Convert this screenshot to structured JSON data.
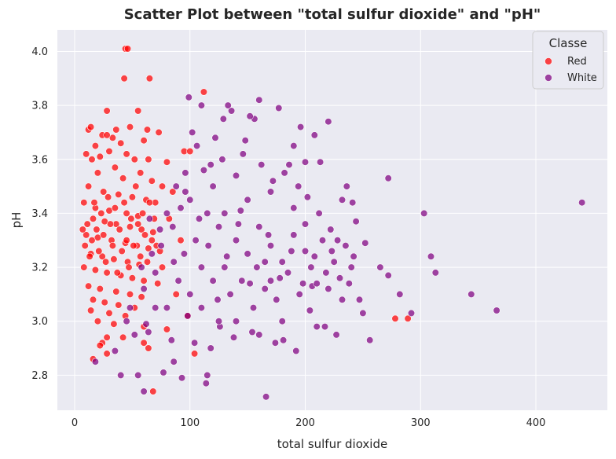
{
  "chart_data": {
    "type": "scatter",
    "title": "Scatter Plot between \"total sulfur dioxide\" and \"pH\"",
    "xlabel": "total sulfur dioxide",
    "ylabel": "pH",
    "xlim": [
      -15,
      462
    ],
    "ylim": [
      2.67,
      4.08
    ],
    "xticks": [
      0,
      100,
      200,
      300,
      400
    ],
    "yticks": [
      2.8,
      3.0,
      3.2,
      3.4,
      3.6,
      3.8,
      4.0
    ],
    "grid": true,
    "legend": {
      "title": "Classe",
      "placement": "top-right"
    },
    "series": [
      {
        "name": "Red",
        "color": "#ff0000",
        "points": [
          [
            44,
            4.01
          ],
          [
            46,
            4.01
          ],
          [
            43,
            3.9
          ],
          [
            65,
            3.9
          ],
          [
            55,
            3.78
          ],
          [
            28,
            3.78
          ],
          [
            12,
            3.71
          ],
          [
            14,
            3.72
          ],
          [
            36,
            3.71
          ],
          [
            48,
            3.72
          ],
          [
            63,
            3.71
          ],
          [
            73,
            3.7
          ],
          [
            33,
            3.68
          ],
          [
            24,
            3.69
          ],
          [
            28,
            3.69
          ],
          [
            40,
            3.66
          ],
          [
            60,
            3.67
          ],
          [
            18,
            3.65
          ],
          [
            30,
            3.63
          ],
          [
            45,
            3.62
          ],
          [
            10,
            3.62
          ],
          [
            15,
            3.6
          ],
          [
            22,
            3.61
          ],
          [
            52,
            3.6
          ],
          [
            64,
            3.6
          ],
          [
            95,
            3.63
          ],
          [
            80,
            3.59
          ],
          [
            20,
            3.55
          ],
          [
            35,
            3.57
          ],
          [
            42,
            3.53
          ],
          [
            57,
            3.55
          ],
          [
            67,
            3.52
          ],
          [
            76,
            3.5
          ],
          [
            12,
            3.5
          ],
          [
            25,
            3.48
          ],
          [
            38,
            3.47
          ],
          [
            50,
            3.46
          ],
          [
            62,
            3.45
          ],
          [
            70,
            3.44
          ],
          [
            8,
            3.44
          ],
          [
            18,
            3.42
          ],
          [
            30,
            3.41
          ],
          [
            45,
            3.4
          ],
          [
            55,
            3.39
          ],
          [
            16,
            3.38
          ],
          [
            26,
            3.37
          ],
          [
            36,
            3.36
          ],
          [
            48,
            3.35
          ],
          [
            58,
            3.34
          ],
          [
            68,
            3.33
          ],
          [
            10,
            3.32
          ],
          [
            20,
            3.31
          ],
          [
            32,
            3.3
          ],
          [
            44,
            3.29
          ],
          [
            54,
            3.28
          ],
          [
            64,
            3.27
          ],
          [
            74,
            3.26
          ],
          [
            14,
            3.25
          ],
          [
            24,
            3.24
          ],
          [
            34,
            3.23
          ],
          [
            46,
            3.22
          ],
          [
            56,
            3.21
          ],
          [
            8,
            3.2
          ],
          [
            18,
            3.19
          ],
          [
            28,
            3.18
          ],
          [
            40,
            3.17
          ],
          [
            50,
            3.16
          ],
          [
            60,
            3.15
          ],
          [
            72,
            3.14
          ],
          [
            12,
            3.13
          ],
          [
            22,
            3.12
          ],
          [
            36,
            3.11
          ],
          [
            48,
            3.1
          ],
          [
            58,
            3.09
          ],
          [
            16,
            3.08
          ],
          [
            26,
            3.07
          ],
          [
            38,
            3.06
          ],
          [
            52,
            3.05
          ],
          [
            14,
            3.04
          ],
          [
            30,
            3.03
          ],
          [
            44,
            3.02
          ],
          [
            20,
            3.0
          ],
          [
            34,
            2.99
          ],
          [
            60,
            2.98
          ],
          [
            28,
            2.94
          ],
          [
            42,
            2.94
          ],
          [
            24,
            2.92
          ],
          [
            22,
            2.91
          ],
          [
            60,
            2.92
          ],
          [
            64,
            2.9
          ],
          [
            16,
            2.86
          ],
          [
            28,
            2.88
          ],
          [
            68,
            2.74
          ],
          [
            104,
            2.88
          ],
          [
            278,
            3.01
          ],
          [
            289,
            3.01
          ],
          [
            112,
            3.85
          ],
          [
            100,
            3.63
          ],
          [
            85,
            3.48
          ],
          [
            92,
            3.3
          ],
          [
            88,
            3.1
          ],
          [
            98,
            3.02
          ],
          [
            80,
            2.97
          ],
          [
            76,
            3.2
          ],
          [
            82,
            3.38
          ],
          [
            7,
            3.34
          ],
          [
            9,
            3.28
          ],
          [
            11,
            3.36
          ],
          [
            13,
            3.24
          ],
          [
            15,
            3.3
          ],
          [
            17,
            3.44
          ],
          [
            19,
            3.34
          ],
          [
            21,
            3.26
          ],
          [
            23,
            3.4
          ],
          [
            25,
            3.32
          ],
          [
            27,
            3.22
          ],
          [
            29,
            3.46
          ],
          [
            31,
            3.36
          ],
          [
            33,
            3.28
          ],
          [
            35,
            3.42
          ],
          [
            37,
            3.18
          ],
          [
            39,
            3.34
          ],
          [
            41,
            3.26
          ],
          [
            43,
            3.44
          ],
          [
            45,
            3.3
          ],
          [
            47,
            3.2
          ],
          [
            49,
            3.38
          ],
          [
            51,
            3.28
          ],
          [
            53,
            3.5
          ],
          [
            55,
            3.36
          ],
          [
            57,
            3.24
          ],
          [
            59,
            3.4
          ],
          [
            61,
            3.32
          ],
          [
            63,
            3.22
          ],
          [
            65,
            3.44
          ],
          [
            67,
            3.3
          ],
          [
            69,
            3.38
          ],
          [
            71,
            3.28
          ]
        ]
      },
      {
        "name": "White",
        "color": "#800080",
        "points": [
          [
            440,
            3.44
          ],
          [
            366,
            3.04
          ],
          [
            344,
            3.1
          ],
          [
            313,
            3.18
          ],
          [
            309,
            3.24
          ],
          [
            303,
            3.4
          ],
          [
            292,
            3.03
          ],
          [
            282,
            3.1
          ],
          [
            272,
            3.53
          ],
          [
            272,
            3.17
          ],
          [
            265,
            3.2
          ],
          [
            256,
            2.93
          ],
          [
            250,
            3.03
          ],
          [
            247,
            3.08
          ],
          [
            244,
            3.37
          ],
          [
            241,
            3.44
          ],
          [
            236,
            3.5
          ],
          [
            232,
            3.45
          ],
          [
            227,
            2.95
          ],
          [
            223,
            3.26
          ],
          [
            220,
            3.74
          ],
          [
            217,
            2.98
          ],
          [
            213,
            3.59
          ],
          [
            208,
            3.69
          ],
          [
            206,
            3.13
          ],
          [
            204,
            3.04
          ],
          [
            200,
            3.59
          ],
          [
            196,
            3.72
          ],
          [
            192,
            2.89
          ],
          [
            190,
            3.65
          ],
          [
            186,
            3.58
          ],
          [
            181,
            2.93
          ],
          [
            177,
            3.79
          ],
          [
            174,
            2.92
          ],
          [
            170,
            3.15
          ],
          [
            166,
            2.72
          ],
          [
            165,
            3.22
          ],
          [
            160,
            3.82
          ],
          [
            156,
            3.75
          ],
          [
            152,
            3.76
          ],
          [
            148,
            3.67
          ],
          [
            144,
            3.41
          ],
          [
            140,
            3.54
          ],
          [
            136,
            3.78
          ],
          [
            133,
            3.8
          ],
          [
            129,
            3.75
          ],
          [
            126,
            2.98
          ],
          [
            122,
            3.68
          ],
          [
            118,
            3.58
          ],
          [
            115,
            2.8
          ],
          [
            114,
            2.77
          ],
          [
            110,
            3.8
          ],
          [
            106,
            3.65
          ],
          [
            102,
            3.7
          ],
          [
            99,
            3.83
          ],
          [
            96,
            3.48
          ],
          [
            93,
            2.79
          ],
          [
            88,
            3.5
          ],
          [
            86,
            2.85
          ],
          [
            84,
            2.93
          ],
          [
            80,
            3.4
          ],
          [
            77,
            2.81
          ],
          [
            74,
            3.34
          ],
          [
            70,
            3.05
          ],
          [
            67,
            3.25
          ],
          [
            64,
            2.96
          ],
          [
            60,
            2.74
          ],
          [
            58,
            3.2
          ],
          [
            55,
            2.8
          ],
          [
            52,
            2.95
          ],
          [
            48,
            3.05
          ],
          [
            45,
            3.0
          ],
          [
            40,
            2.8
          ],
          [
            18,
            2.85
          ],
          [
            35,
            2.89
          ],
          [
            62,
            2.99
          ],
          [
            125,
            3.0
          ],
          [
            130,
            3.2
          ],
          [
            135,
            3.1
          ],
          [
            140,
            3.3
          ],
          [
            145,
            3.15
          ],
          [
            150,
            3.25
          ],
          [
            155,
            3.05
          ],
          [
            160,
            3.35
          ],
          [
            165,
            3.12
          ],
          [
            170,
            3.28
          ],
          [
            175,
            3.08
          ],
          [
            180,
            3.22
          ],
          [
            185,
            3.18
          ],
          [
            190,
            3.32
          ],
          [
            195,
            3.1
          ],
          [
            200,
            3.26
          ],
          [
            205,
            3.2
          ],
          [
            210,
            3.14
          ],
          [
            215,
            3.3
          ],
          [
            220,
            3.12
          ],
          [
            225,
            3.22
          ],
          [
            230,
            3.16
          ],
          [
            235,
            3.28
          ],
          [
            240,
            3.2
          ],
          [
            100,
            3.1
          ],
          [
            105,
            3.3
          ],
          [
            110,
            3.2
          ],
          [
            115,
            3.4
          ],
          [
            120,
            3.15
          ],
          [
            125,
            3.35
          ],
          [
            95,
            3.25
          ],
          [
            90,
            3.15
          ],
          [
            85,
            3.35
          ],
          [
            80,
            3.05
          ],
          [
            75,
            3.28
          ],
          [
            70,
            3.18
          ],
          [
            65,
            3.38
          ],
          [
            60,
            3.12
          ],
          [
            100,
            3.45
          ],
          [
            110,
            3.05
          ],
          [
            120,
            3.5
          ],
          [
            130,
            3.4
          ],
          [
            140,
            3.0
          ],
          [
            150,
            3.45
          ],
          [
            160,
            2.95
          ],
          [
            170,
            3.48
          ],
          [
            180,
            3.0
          ],
          [
            190,
            3.42
          ],
          [
            200,
            3.36
          ],
          [
            210,
            2.98
          ],
          [
            96,
            3.55
          ],
          [
            104,
            2.92
          ],
          [
            112,
            3.56
          ],
          [
            118,
            2.9
          ],
          [
            128,
            3.6
          ],
          [
            138,
            2.94
          ],
          [
            146,
            3.62
          ],
          [
            154,
            2.96
          ],
          [
            162,
            3.58
          ],
          [
            172,
            3.52
          ],
          [
            182,
            3.55
          ],
          [
            194,
            3.5
          ],
          [
            202,
            3.46
          ],
          [
            212,
            3.4
          ],
          [
            222,
            3.34
          ],
          [
            232,
            3.08
          ],
          [
            242,
            3.24
          ],
          [
            252,
            3.29
          ],
          [
            86,
            3.22
          ],
          [
            92,
            3.42
          ],
          [
            98,
            3.02
          ],
          [
            108,
            3.38
          ],
          [
            116,
            3.28
          ],
          [
            124,
            3.08
          ],
          [
            132,
            3.24
          ],
          [
            142,
            3.36
          ],
          [
            152,
            3.14
          ],
          [
            158,
            3.2
          ],
          [
            168,
            3.32
          ],
          [
            178,
            3.16
          ],
          [
            188,
            3.26
          ],
          [
            198,
            3.14
          ],
          [
            208,
            3.24
          ],
          [
            218,
            3.18
          ],
          [
            228,
            3.3
          ],
          [
            238,
            3.14
          ]
        ]
      }
    ]
  }
}
